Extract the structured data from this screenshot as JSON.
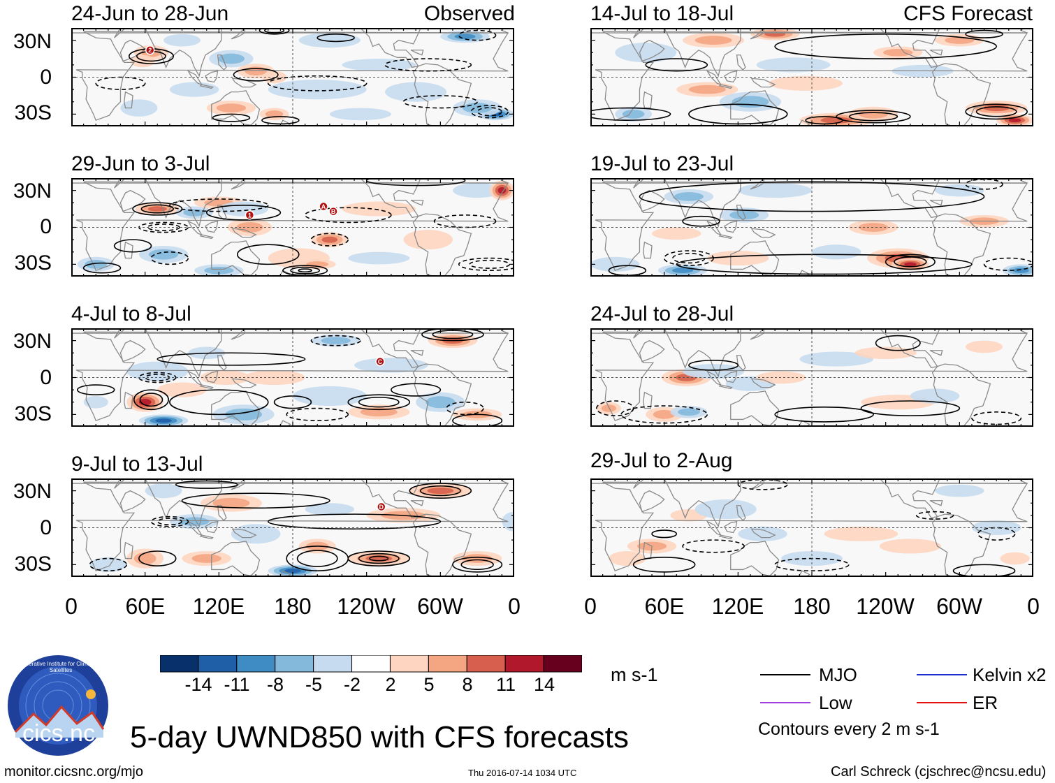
{
  "chart_data": {
    "type": "map",
    "title": "5-day UWND850 with CFS forecasts",
    "variable": "UWND850",
    "units": "m s-1",
    "lat_ticks": [
      "30N",
      "0",
      "30S"
    ],
    "lon_ticks": [
      "0",
      "60E",
      "120E",
      "180",
      "120W",
      "60W",
      "0"
    ],
    "colorbar_levels": [
      -14,
      -11,
      -8,
      -5,
      -2,
      2,
      5,
      8,
      11,
      14
    ],
    "colorbar_labels": [
      "-14",
      "-11",
      "-8",
      "-5",
      "-2",
      "2",
      "5",
      "8",
      "11",
      "14"
    ],
    "colorbar_colors": [
      "#08306b",
      "#1f5fa8",
      "#3f8cc4",
      "#84b9db",
      "#c6dbef",
      "#ffffff",
      "#fdd5c0",
      "#f4a582",
      "#d6604d",
      "#b2182b",
      "#67001f"
    ],
    "panels": [
      {
        "period": "24-Jun to 28-Jun",
        "tag": "Observed",
        "markers": [
          "2"
        ]
      },
      {
        "period": "29-Jun to 3-Jul",
        "tag": "",
        "markers": [
          "A",
          "B"
        ]
      },
      {
        "period": "4-Jul to 8-Jul",
        "tag": "",
        "markers": [
          "C"
        ]
      },
      {
        "period": "9-Jul to 13-Jul",
        "tag": "",
        "markers": [
          "D"
        ]
      },
      {
        "period": "14-Jul to 18-Jul",
        "tag": "CFS Forecast",
        "markers": []
      },
      {
        "period": "19-Jul to 23-Jul",
        "tag": "",
        "markers": []
      },
      {
        "period": "24-Jul to 28-Jul",
        "tag": "",
        "markers": []
      },
      {
        "period": "29-Jul to 2-Aug",
        "tag": "",
        "markers": []
      }
    ],
    "legend": {
      "mjo": "MJO",
      "kelvin": "Kelvin x2",
      "low": "Low",
      "er": "ER",
      "contours": "Contours every 2 m s-1",
      "colors": {
        "mjo": "#000000",
        "kelvin": "#1f2fd0",
        "low": "#a040e0",
        "er": "#e01010"
      }
    }
  },
  "footer": {
    "url": "monitor.cicsnc.org/mjo",
    "timestamp": "Thu 2016-07-14 1034 UTC",
    "author": "Carl Schreck (cjschrec@ncsu.edu)"
  },
  "logo": {
    "name": "cics.nc",
    "ring_text": "Cooperative Institute for Climate and Satellites"
  }
}
